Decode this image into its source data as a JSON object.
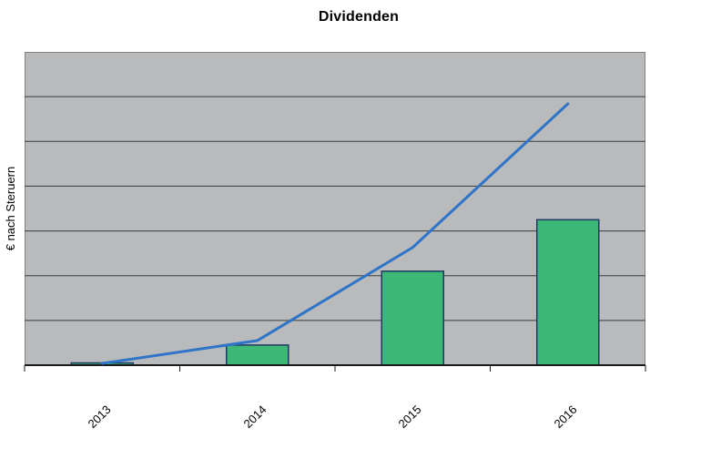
{
  "page": {
    "background": "#ffffff"
  },
  "chart_data": {
    "type": "combo-bar-line",
    "title": "Dividenden",
    "xlabel": "",
    "ylabel": "€ nach Steruern",
    "categories": [
      "2013",
      "2014",
      "2015",
      "2016"
    ],
    "series": [
      {
        "name": "bar_series",
        "type": "bar",
        "values": [
          0.05,
          0.45,
          2.1,
          3.25
        ],
        "fill": "#3eb877",
        "stroke": "#1f3864"
      },
      {
        "name": "line_series",
        "type": "line",
        "values": [
          0.04,
          0.55,
          2.63,
          5.84
        ],
        "color": "#2e74c8"
      }
    ],
    "ylim": [
      0,
      7
    ],
    "y_tick_labels_visible": false,
    "values_unit_note": "y-axis shows no numeric labels; values estimated in gridline units (1 unit = 1 horizontal gridline interval)",
    "grid": true,
    "gridline_intervals": 7,
    "legend": "none",
    "colors": {
      "plot_background": "#b9babc",
      "plot_border": "#808080",
      "gridline": "#3a3a3a",
      "axis": "#1a1a1a",
      "bar_fill": "#3eb877",
      "bar_border": "#1f3864",
      "line": "#2e74c8"
    }
  }
}
